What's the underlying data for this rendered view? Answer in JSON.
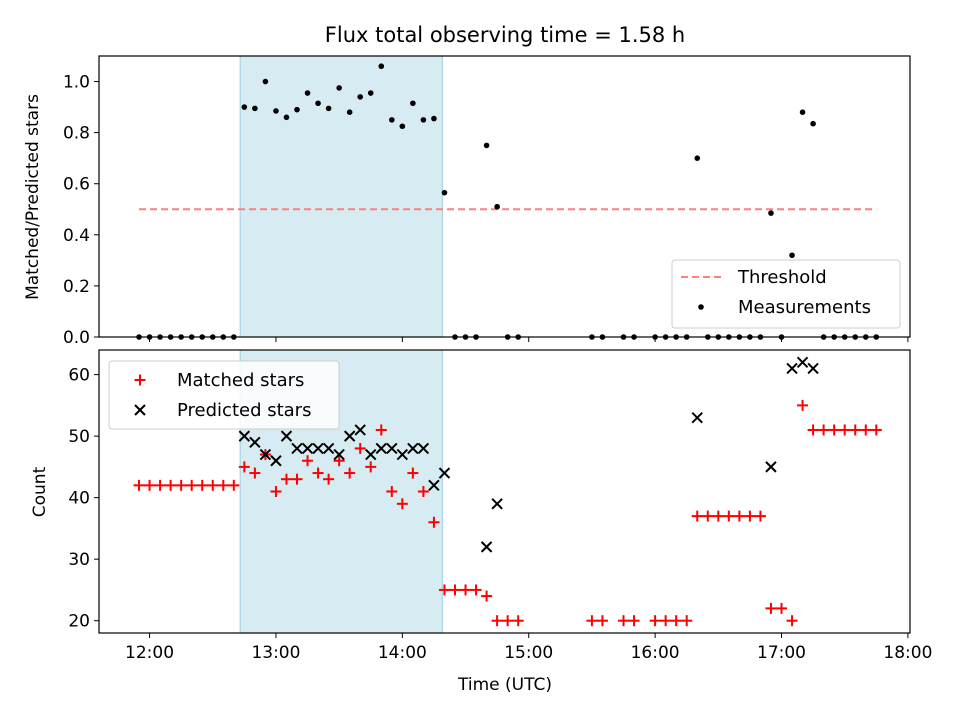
{
  "chart_data": [
    {
      "type": "scatter",
      "title": "Flux total observing time = 1.58 h",
      "ylabel": "Matched/Predicted stars",
      "xlabel": "",
      "xlim": [
        "11:36",
        "18:01"
      ],
      "ylim": [
        0,
        1.1
      ],
      "yticks": [
        "0.0",
        "0.2",
        "0.4",
        "0.6",
        "0.8",
        "1.0"
      ],
      "grid": false,
      "legend_position": "lower-right",
      "highlight_span": {
        "start": "12:43",
        "end": "14:19",
        "color": "#add8e6"
      },
      "threshold": {
        "name": "Threshold",
        "value": 0.5,
        "x_start": "11:55",
        "x_end": "17:45",
        "color": "#ff7f7f",
        "style": "dashed"
      },
      "series": [
        {
          "name": "Measurements",
          "marker": "dot",
          "color": "#000000",
          "points": [
            [
              "11:55",
              0
            ],
            [
              "12:00",
              0
            ],
            [
              "12:05",
              0
            ],
            [
              "12:10",
              0
            ],
            [
              "12:15",
              0
            ],
            [
              "12:20",
              0
            ],
            [
              "12:25",
              0
            ],
            [
              "12:30",
              0
            ],
            [
              "12:35",
              0
            ],
            [
              "12:40",
              0
            ],
            [
              "12:45",
              0.9
            ],
            [
              "12:50",
              0.895
            ],
            [
              "12:55",
              1.0
            ],
            [
              "13:00",
              0.885
            ],
            [
              "13:05",
              0.86
            ],
            [
              "13:10",
              0.89
            ],
            [
              "13:15",
              0.955
            ],
            [
              "13:20",
              0.915
            ],
            [
              "13:25",
              0.895
            ],
            [
              "13:30",
              0.975
            ],
            [
              "13:35",
              0.88
            ],
            [
              "13:40",
              0.94
            ],
            [
              "13:45",
              0.955
            ],
            [
              "13:50",
              1.06
            ],
            [
              "13:55",
              0.85
            ],
            [
              "14:00",
              0.825
            ],
            [
              "14:05",
              0.915
            ],
            [
              "14:10",
              0.85
            ],
            [
              "14:15",
              0.855
            ],
            [
              "14:20",
              0.565
            ],
            [
              "14:25",
              0
            ],
            [
              "14:30",
              0
            ],
            [
              "14:35",
              0
            ],
            [
              "14:40",
              0.75
            ],
            [
              "14:45",
              0.51
            ],
            [
              "14:50",
              0
            ],
            [
              "14:55",
              0
            ],
            [
              "15:30",
              0
            ],
            [
              "15:35",
              0
            ],
            [
              "15:45",
              0
            ],
            [
              "15:50",
              0
            ],
            [
              "16:00",
              0
            ],
            [
              "16:05",
              0
            ],
            [
              "16:10",
              0
            ],
            [
              "16:15",
              0
            ],
            [
              "16:20",
              0.7
            ],
            [
              "16:25",
              0
            ],
            [
              "16:30",
              0
            ],
            [
              "16:35",
              0
            ],
            [
              "16:40",
              0
            ],
            [
              "16:45",
              0
            ],
            [
              "16:50",
              0
            ],
            [
              "16:55",
              0.485
            ],
            [
              "17:00",
              0
            ],
            [
              "17:05",
              0.32
            ],
            [
              "17:10",
              0.88
            ],
            [
              "17:15",
              0.835
            ],
            [
              "17:20",
              0
            ],
            [
              "17:25",
              0
            ],
            [
              "17:30",
              0
            ],
            [
              "17:35",
              0
            ],
            [
              "17:40",
              0
            ],
            [
              "17:45",
              0
            ]
          ]
        }
      ]
    },
    {
      "type": "scatter",
      "title": "",
      "ylabel": "Count",
      "xlabel": "Time (UTC)",
      "xlim": [
        "11:36",
        "18:01"
      ],
      "ylim": [
        18,
        64
      ],
      "xticks": [
        "12:00",
        "13:00",
        "14:00",
        "15:00",
        "16:00",
        "17:00",
        "18:00"
      ],
      "yticks": [
        "20",
        "30",
        "40",
        "50",
        "60"
      ],
      "grid": false,
      "legend_position": "upper-left",
      "highlight_span": {
        "start": "12:43",
        "end": "14:19",
        "color": "#add8e6"
      },
      "series": [
        {
          "name": "Matched stars",
          "marker": "plus",
          "color": "#ff0000",
          "points": [
            [
              "11:55",
              42
            ],
            [
              "12:00",
              42
            ],
            [
              "12:05",
              42
            ],
            [
              "12:10",
              42
            ],
            [
              "12:15",
              42
            ],
            [
              "12:20",
              42
            ],
            [
              "12:25",
              42
            ],
            [
              "12:30",
              42
            ],
            [
              "12:35",
              42
            ],
            [
              "12:40",
              42
            ],
            [
              "12:45",
              45
            ],
            [
              "12:50",
              44
            ],
            [
              "12:55",
              47
            ],
            [
              "13:00",
              41
            ],
            [
              "13:05",
              43
            ],
            [
              "13:10",
              43
            ],
            [
              "13:15",
              46
            ],
            [
              "13:20",
              44
            ],
            [
              "13:25",
              43
            ],
            [
              "13:30",
              46
            ],
            [
              "13:35",
              44
            ],
            [
              "13:40",
              48
            ],
            [
              "13:45",
              45
            ],
            [
              "13:50",
              51
            ],
            [
              "13:55",
              41
            ],
            [
              "14:00",
              39
            ],
            [
              "14:05",
              44
            ],
            [
              "14:10",
              41
            ],
            [
              "14:15",
              36
            ],
            [
              "14:20",
              25
            ],
            [
              "14:25",
              25
            ],
            [
              "14:30",
              25
            ],
            [
              "14:35",
              25
            ],
            [
              "14:40",
              24
            ],
            [
              "14:45",
              20
            ],
            [
              "14:50",
              20
            ],
            [
              "14:55",
              20
            ],
            [
              "15:30",
              20
            ],
            [
              "15:35",
              20
            ],
            [
              "15:45",
              20
            ],
            [
              "15:50",
              20
            ],
            [
              "16:00",
              20
            ],
            [
              "16:05",
              20
            ],
            [
              "16:10",
              20
            ],
            [
              "16:15",
              20
            ],
            [
              "16:20",
              37
            ],
            [
              "16:25",
              37
            ],
            [
              "16:30",
              37
            ],
            [
              "16:35",
              37
            ],
            [
              "16:40",
              37
            ],
            [
              "16:45",
              37
            ],
            [
              "16:50",
              37
            ],
            [
              "16:55",
              22
            ],
            [
              "17:00",
              22
            ],
            [
              "17:05",
              20
            ],
            [
              "17:10",
              55
            ],
            [
              "17:15",
              51
            ],
            [
              "17:20",
              51
            ],
            [
              "17:25",
              51
            ],
            [
              "17:30",
              51
            ],
            [
              "17:35",
              51
            ],
            [
              "17:40",
              51
            ],
            [
              "17:45",
              51
            ]
          ]
        },
        {
          "name": "Predicted stars",
          "marker": "x",
          "color": "#000000",
          "points": [
            [
              "12:45",
              50
            ],
            [
              "12:50",
              49
            ],
            [
              "12:55",
              47
            ],
            [
              "13:00",
              46
            ],
            [
              "13:05",
              50
            ],
            [
              "13:10",
              48
            ],
            [
              "13:15",
              48
            ],
            [
              "13:20",
              48
            ],
            [
              "13:25",
              48
            ],
            [
              "13:30",
              47
            ],
            [
              "13:35",
              50
            ],
            [
              "13:40",
              51
            ],
            [
              "13:45",
              47
            ],
            [
              "13:50",
              48
            ],
            [
              "13:55",
              48
            ],
            [
              "14:00",
              47
            ],
            [
              "14:05",
              48
            ],
            [
              "14:10",
              48
            ],
            [
              "14:15",
              42
            ],
            [
              "14:20",
              44
            ],
            [
              "14:40",
              32
            ],
            [
              "14:45",
              39
            ],
            [
              "16:20",
              53
            ],
            [
              "16:55",
              45
            ],
            [
              "17:05",
              61
            ],
            [
              "17:10",
              62
            ],
            [
              "17:15",
              61
            ]
          ]
        }
      ]
    }
  ]
}
